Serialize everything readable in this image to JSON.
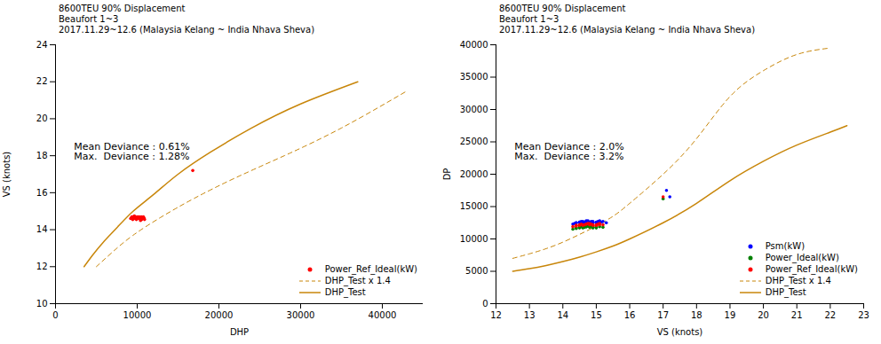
{
  "chart_data": [
    {
      "type": "line",
      "title": "8600TEU 90% Displacement\nBeaufort 1~3\n2017.11.29~12.6 (Malaysia Kelang ~ India Nhava Sheva)",
      "xlabel": "DHP",
      "ylabel": "VS (knots)",
      "xlim": [
        0,
        45000
      ],
      "ylim": [
        10,
        24
      ],
      "xticks": [
        0,
        10000,
        20000,
        30000,
        40000
      ],
      "yticks": [
        10,
        12,
        14,
        16,
        18,
        20,
        22,
        24
      ],
      "grid": false,
      "legend": "lower right",
      "annotations": [
        "Mean Deviance : 0.61%\nMax.  Deviance : 1.28%"
      ],
      "series": [
        {
          "name": "Power_Ref_Ideal(kW)",
          "type": "scatter",
          "marker": "circle",
          "color": "red",
          "x": [
            9200,
            9300,
            9350,
            9400,
            9450,
            9500,
            9550,
            9600,
            9650,
            9700,
            9750,
            9800,
            9850,
            9900,
            9950,
            10000,
            10050,
            10100,
            10150,
            10200,
            10250,
            10300,
            10350,
            10400,
            10450,
            10500,
            10550,
            10600,
            10650,
            10700,
            10750,
            10800,
            10850,
            10900,
            16800
          ],
          "values": [
            14.6,
            14.65,
            14.7,
            14.6,
            14.55,
            14.7,
            14.65,
            14.6,
            14.75,
            14.6,
            14.65,
            14.7,
            14.6,
            14.55,
            14.65,
            14.6,
            14.7,
            14.65,
            14.6,
            14.6,
            14.7,
            14.65,
            14.6,
            14.5,
            14.65,
            14.7,
            14.55,
            14.6,
            14.65,
            14.6,
            14.7,
            14.65,
            14.6,
            14.55,
            17.2
          ]
        },
        {
          "name": "DHP_Test x 1.4",
          "type": "line",
          "line_style": "dashed",
          "color": "#c8860a",
          "x": [
            5000,
            7000,
            9500,
            13000,
            17000,
            22000,
            28000,
            35000,
            43000
          ],
          "values": [
            12.0,
            12.8,
            13.7,
            14.7,
            15.7,
            16.8,
            18.0,
            19.5,
            21.5
          ]
        },
        {
          "name": "DHP_Test",
          "type": "line",
          "line_style": "solid",
          "color": "#c8860a",
          "x": [
            3500,
            4500,
            5800,
            7500,
            9500,
            12000,
            15000,
            19000,
            24000,
            30000,
            37000
          ],
          "values": [
            12.0,
            12.6,
            13.3,
            14.1,
            15.0,
            15.9,
            17.0,
            18.2,
            19.5,
            20.8,
            22.0
          ]
        }
      ]
    },
    {
      "type": "line",
      "title": "8600TEU 90% Displacement\nBeaufort 1~3\n2017.11.29~12.6 (Malaysia Kelang ~ India Nhava Sheva)",
      "xlabel": "VS (knots)",
      "ylabel": "DP",
      "xlim": [
        12,
        23
      ],
      "ylim": [
        0,
        40000
      ],
      "xticks": [
        12,
        13,
        14,
        15,
        16,
        17,
        18,
        19,
        20,
        21,
        22,
        23
      ],
      "yticks": [
        0,
        5000,
        10000,
        15000,
        20000,
        25000,
        30000,
        35000,
        40000
      ],
      "grid": false,
      "legend": "lower right",
      "annotations": [
        "Mean Deviance : 2.0%\nMax.  Deviance : 3.2%"
      ],
      "series": [
        {
          "name": "Psm(kW)",
          "type": "scatter",
          "marker": "circle",
          "color": "blue",
          "x": [
            14.4,
            14.5,
            14.55,
            14.6,
            14.65,
            14.7,
            14.75,
            14.8,
            14.85,
            14.9,
            15.0,
            15.05,
            15.1,
            15.15,
            15.2,
            15.3,
            14.3,
            14.35,
            14.4,
            14.5,
            14.6,
            14.7,
            14.8,
            14.9,
            15.0,
            15.1,
            17.1,
            17.2
          ],
          "values": [
            12500,
            12600,
            12700,
            12500,
            12600,
            12700,
            12800,
            12600,
            12700,
            12500,
            12600,
            12700,
            12800,
            12600,
            12700,
            12500,
            12300,
            12400,
            12500,
            12600,
            12700,
            12800,
            12600,
            12700,
            12500,
            12600,
            17500,
            16500
          ]
        },
        {
          "name": "Power_Ideal(kW)",
          "type": "scatter",
          "marker": "circle",
          "color": "green",
          "x": [
            14.4,
            14.5,
            14.55,
            14.6,
            14.65,
            14.7,
            14.75,
            14.8,
            14.85,
            14.9,
            15.0,
            15.1,
            15.2,
            14.3,
            14.4,
            14.5,
            14.6,
            14.7,
            14.8,
            14.9,
            15.0,
            17.0
          ],
          "values": [
            11700,
            11800,
            11900,
            11700,
            11800,
            11900,
            12000,
            11800,
            11900,
            11700,
            11800,
            11900,
            11800,
            11500,
            11600,
            11700,
            11800,
            11900,
            12000,
            11800,
            11700,
            16200
          ]
        },
        {
          "name": "Power_Ref_Ideal(kW)",
          "type": "scatter",
          "marker": "circle",
          "color": "red",
          "x": [
            14.4,
            14.5,
            14.55,
            14.6,
            14.65,
            14.7,
            14.75,
            14.8,
            14.85,
            14.9,
            15.0,
            15.05,
            15.1,
            15.2,
            14.3,
            14.4,
            14.5,
            14.6,
            14.7,
            14.8,
            14.9,
            15.0,
            15.1,
            17.0
          ],
          "values": [
            12100,
            12200,
            12300,
            12100,
            12200,
            12300,
            12400,
            12200,
            12300,
            12100,
            12200,
            12300,
            12400,
            12200,
            11900,
            12000,
            12100,
            12200,
            12300,
            12400,
            12200,
            12100,
            12200,
            16500
          ]
        },
        {
          "name": "DHP_Test x 1.4",
          "type": "line",
          "line_style": "dashed",
          "color": "#c8860a",
          "x": [
            12.5,
            13.0,
            13.5,
            14.0,
            14.5,
            15.0,
            15.5,
            16.0,
            17.0,
            18.0,
            19.0,
            20.0,
            21.0,
            22.0
          ],
          "values": [
            7000,
            7700,
            8500,
            9500,
            10700,
            12000,
            13500,
            15500,
            20000,
            25500,
            32000,
            36000,
            38500,
            39500
          ]
        },
        {
          "name": "DHP_Test",
          "type": "line",
          "line_style": "solid",
          "color": "#c8860a",
          "x": [
            12.5,
            13.0,
            13.5,
            14.0,
            14.5,
            15.0,
            15.5,
            16.0,
            17.0,
            18.0,
            19.0,
            20.0,
            21.0,
            22.0,
            22.5
          ],
          "values": [
            5000,
            5400,
            5900,
            6500,
            7200,
            8000,
            8900,
            10000,
            12500,
            15500,
            19000,
            22000,
            24500,
            26500,
            27500
          ]
        }
      ]
    }
  ]
}
